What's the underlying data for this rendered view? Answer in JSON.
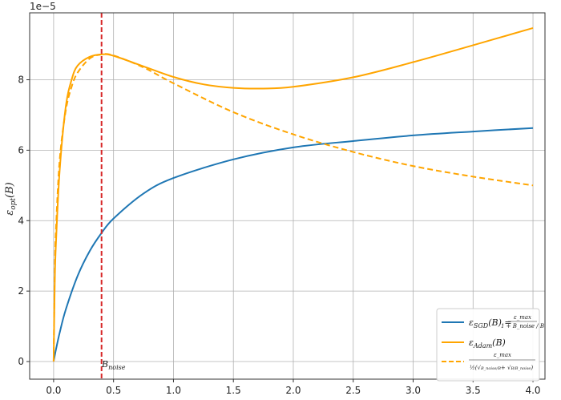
{
  "chart_data": {
    "type": "line",
    "title": "",
    "xlabel": "",
    "ylabel": "ε_opt(B)",
    "ylabel_parts": {
      "main": "ε",
      "sub": "opt",
      "rest": "(B)"
    },
    "y_offset_label": "1e−5",
    "xlim": [
      -0.2,
      4.1
    ],
    "ylim": [
      -0.5,
      9.9
    ],
    "xticks": [
      0.0,
      0.5,
      1.0,
      1.5,
      2.0,
      2.5,
      3.0,
      3.5,
      4.0
    ],
    "xtick_labels": [
      "0.0",
      "0.5",
      "1.0",
      "1.5",
      "2.0",
      "2.5",
      "3.0",
      "3.5",
      "4.0"
    ],
    "yticks": [
      0,
      2,
      4,
      6,
      8
    ],
    "ytick_labels": [
      "0",
      "2",
      "4",
      "6",
      "8"
    ],
    "grid": true,
    "legend_position": "bottom-right",
    "vline": {
      "x": 0.4,
      "color": "#d62728",
      "label": "B_noise",
      "label_main": "B",
      "label_sub": "noise"
    },
    "series": [
      {
        "name": "ε_SGD(B) = ε_max / (1 + B_noise / B)",
        "legend_main": "ε",
        "legend_sub": "SGD",
        "legend_rest": "(B) =",
        "frac_num": "ε_max",
        "frac_den": "1 + B_noise / B",
        "color": "#1f77b4",
        "style": "solid",
        "x": [
          0.001,
          0.01,
          0.02,
          0.05,
          0.1,
          0.2,
          0.3,
          0.4,
          0.5,
          0.75,
          1.0,
          1.5,
          2.0,
          2.5,
          3.0,
          3.5,
          4.0
        ],
        "y": [
          0.018,
          0.18,
          0.35,
          0.81,
          1.46,
          2.43,
          3.13,
          3.65,
          4.06,
          4.77,
          5.21,
          5.74,
          6.08,
          6.26,
          6.42,
          6.53,
          6.63
        ]
      },
      {
        "name": "ε_Adam(B)",
        "legend_main": "ε",
        "legend_sub": "Adam",
        "legend_rest": "(B)",
        "color": "#ffa500",
        "style": "solid",
        "x": [
          0.0,
          0.01,
          0.02,
          0.05,
          0.1,
          0.15,
          0.2,
          0.3,
          0.4,
          0.5,
          0.75,
          1.0,
          1.25,
          1.5,
          1.75,
          2.0,
          2.5,
          3.0,
          3.5,
          4.0
        ],
        "y": [
          0.0,
          2.35,
          3.4,
          5.4,
          7.2,
          8.0,
          8.4,
          8.65,
          8.72,
          8.68,
          8.38,
          8.08,
          7.87,
          7.77,
          7.75,
          7.8,
          8.07,
          8.5,
          8.98,
          9.47
        ]
      },
      {
        "name": "ε_max / ( ½ ( √(B_noise / B) + √(B / B_noise) ) )",
        "legend_num": "ε_max",
        "legend_den_half": "½",
        "legend_den_a": "(√",
        "legend_den_b": "B_noise/B",
        "legend_den_c": "+ √",
        "legend_den_d": "B/B_noise",
        "legend_den_e": ")",
        "color": "#ffa500",
        "style": "dashed",
        "x": [
          0.0,
          0.01,
          0.02,
          0.05,
          0.1,
          0.15,
          0.2,
          0.3,
          0.4,
          0.5,
          0.75,
          1.0,
          1.5,
          2.0,
          2.5,
          3.0,
          3.5,
          4.0
        ],
        "y": [
          0.0,
          2.7,
          3.8,
          5.7,
          7.1,
          7.8,
          8.2,
          8.6,
          8.72,
          8.69,
          8.35,
          7.9,
          7.08,
          6.45,
          5.95,
          5.55,
          5.25,
          5.0
        ]
      }
    ]
  }
}
